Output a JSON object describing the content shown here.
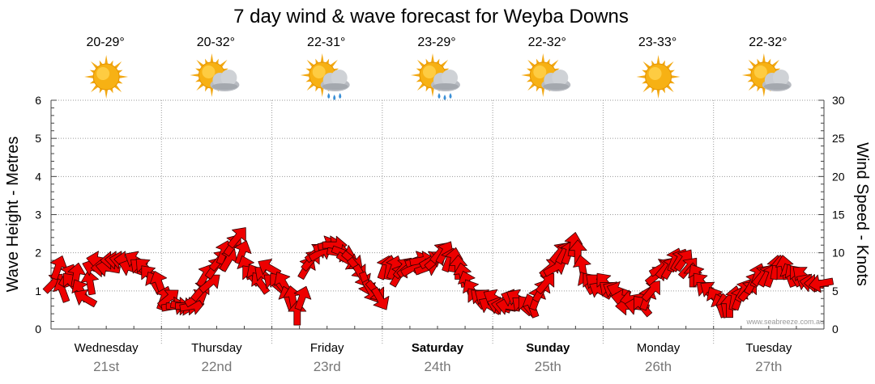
{
  "title": "7 day wind & wave forecast for Weyba Downs",
  "credit": "www.seabreeze.com.au",
  "colors": {
    "arrow_fill": "#ee0000",
    "arrow_stroke": "#330000",
    "grid": "#9a9a9a"
  },
  "days": [
    {
      "day": "Wednesday",
      "date": "21st",
      "temp": "20-29°",
      "weather_icon": "sun-icon",
      "bold": false
    },
    {
      "day": "Thursday",
      "date": "22nd",
      "temp": "20-32°",
      "weather_icon": "sun-cloud-icon",
      "bold": false
    },
    {
      "day": "Friday",
      "date": "23rd",
      "temp": "22-31°",
      "weather_icon": "sun-cloud-rain-icon",
      "bold": false
    },
    {
      "day": "Saturday",
      "date": "24th",
      "temp": "23-29°",
      "weather_icon": "sun-cloud-rain-icon",
      "bold": true
    },
    {
      "day": "Sunday",
      "date": "25th",
      "temp": "22-32°",
      "weather_icon": "sun-cloud-icon",
      "bold": true
    },
    {
      "day": "Monday",
      "date": "26th",
      "temp": "23-33°",
      "weather_icon": "sun-icon",
      "bold": false
    },
    {
      "day": "Tuesday",
      "date": "27th",
      "temp": "22-32°",
      "weather_icon": "sun-cloud-icon",
      "bold": false
    }
  ],
  "chart_data": {
    "type": "line",
    "title": "7 day wind & wave forecast for Weyba Downs",
    "ylabel_left": "Wave Height - Metres",
    "ylabel_right": "Wind Speed - Knots",
    "ylim_left": [
      0,
      6
    ],
    "ylim_right": [
      0,
      30
    ],
    "yticks_left": [
      "0",
      "1",
      "2",
      "3",
      "4",
      "5",
      "6"
    ],
    "yticks_right": [
      "0",
      "5",
      "10",
      "15",
      "20",
      "25",
      "30"
    ],
    "categories": [
      "Wednesday 21st",
      "Thursday 22nd",
      "Friday 23rd",
      "Saturday 24th",
      "Sunday 25th",
      "Monday 26th",
      "Tuesday 27th"
    ],
    "grid": true,
    "series": [
      {
        "marker": "wind-arrow",
        "axis": "right",
        "values_knots": [
          6,
          8,
          5,
          7,
          6,
          7,
          5,
          4,
          6,
          8,
          9,
          8,
          8,
          9,
          9,
          9,
          9,
          8,
          9,
          8,
          8,
          7,
          6,
          6,
          4,
          4,
          3,
          3,
          3,
          3,
          3,
          4,
          5,
          7,
          6,
          8,
          9,
          10,
          9,
          11,
          12,
          10,
          8,
          7,
          7,
          6,
          7,
          8,
          6,
          6,
          6,
          4,
          4,
          2,
          4,
          8,
          9,
          10,
          10,
          11,
          11,
          11,
          10,
          10,
          9,
          9,
          8,
          7,
          6,
          5,
          5,
          4,
          8,
          8,
          8,
          7,
          8,
          8,
          8,
          9,
          9,
          8,
          9,
          9,
          10,
          10,
          9,
          9,
          8,
          7,
          6,
          5,
          4,
          4,
          4,
          3,
          4,
          3,
          3,
          3,
          4,
          4,
          3,
          3,
          3,
          4,
          5,
          6,
          8,
          8,
          10,
          10,
          10,
          11,
          10,
          8,
          6,
          6,
          6,
          5,
          6,
          5,
          5,
          5,
          4,
          3,
          4,
          3,
          3,
          4,
          5,
          7,
          8,
          8,
          8,
          9,
          9,
          9,
          8,
          7,
          7,
          6,
          5,
          5,
          4,
          3,
          3,
          3,
          4,
          4,
          5,
          5,
          6,
          7,
          7,
          7,
          7,
          8,
          8,
          8,
          7,
          7,
          7,
          7,
          6,
          6,
          6,
          6
        ],
        "directions_deg": [
          225,
          200,
          160,
          210,
          140,
          190,
          150,
          120,
          170,
          110,
          100,
          90,
          100,
          90,
          95,
          100,
          95,
          110,
          120,
          130,
          135,
          140,
          150,
          160,
          200,
          230,
          260,
          270,
          280,
          270,
          260,
          240,
          220,
          210,
          230,
          215,
          220,
          200,
          210,
          215,
          220,
          200,
          160,
          140,
          150,
          145,
          130,
          120,
          130,
          140,
          150,
          160,
          170,
          180,
          200,
          210,
          220,
          230,
          240,
          250,
          260,
          270,
          280,
          290,
          300,
          310,
          320,
          330,
          340,
          330,
          320,
          330,
          200,
          190,
          200,
          210,
          220,
          230,
          240,
          250,
          260,
          250,
          240,
          230,
          220,
          210,
          200,
          190,
          180,
          170,
          160,
          150,
          140,
          130,
          125,
          120,
          120,
          110,
          100,
          100,
          110,
          120,
          130,
          140,
          160,
          200,
          210,
          220,
          230,
          240,
          220,
          210,
          200,
          190,
          180,
          170,
          150,
          140,
          130,
          120,
          140,
          130,
          120,
          110,
          100,
          90,
          80,
          100,
          140,
          200,
          220,
          230,
          240,
          220,
          210,
          200,
          210,
          215,
          220,
          180,
          150,
          140,
          130,
          125,
          150,
          160,
          170,
          180,
          190,
          200,
          210,
          220,
          210,
          200,
          220,
          210,
          200,
          190,
          180,
          170,
          160,
          150,
          140,
          130,
          120,
          100,
          90,
          80
        ]
      }
    ]
  }
}
